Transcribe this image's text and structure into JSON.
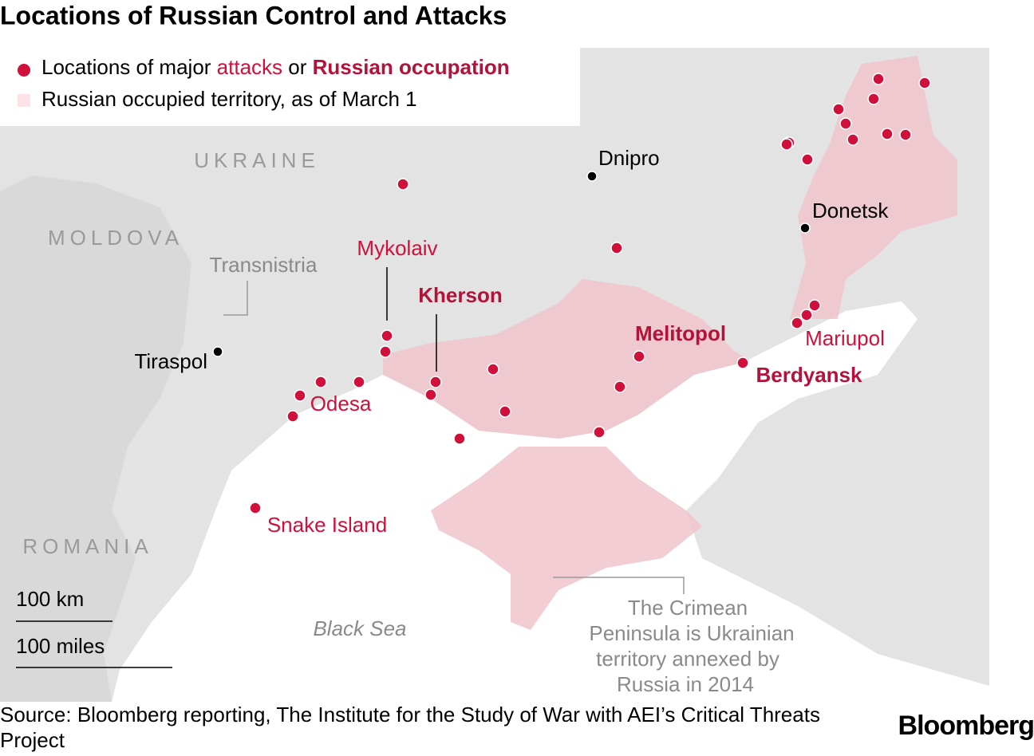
{
  "header": {
    "title": "Locations of Russian Control and Attacks"
  },
  "legend": {
    "items": [
      {
        "parts": [
          "Locations of major ",
          "attacks",
          " or ",
          "Russian occupation"
        ]
      },
      {
        "text": "Russian occupied territory, as of March 1"
      }
    ]
  },
  "map": {
    "countries": [
      "UKRAINE",
      "MOLDOVA",
      "ROMANIA"
    ],
    "places": [
      "Dnipro",
      "Donetsk",
      "Tiraspol",
      "Transnistria"
    ],
    "attack_labels": [
      "Mykolaiv",
      "Kherson",
      "Melitopol",
      "Berdyansk",
      "Mariupol",
      "Odesa",
      "Snake Island"
    ],
    "sea": "Black Sea",
    "annotation": [
      "The Crimean",
      "Peninsula is Ukrainian",
      "territory annexed by",
      "Russia in 2014"
    ],
    "scale": [
      "100 km",
      "100 miles"
    ]
  },
  "footer": {
    "source": "Source: Bloomberg reporting, The Institute for the Study of War with AEI’s Critical Threats Project",
    "brand": "Bloomberg"
  }
}
